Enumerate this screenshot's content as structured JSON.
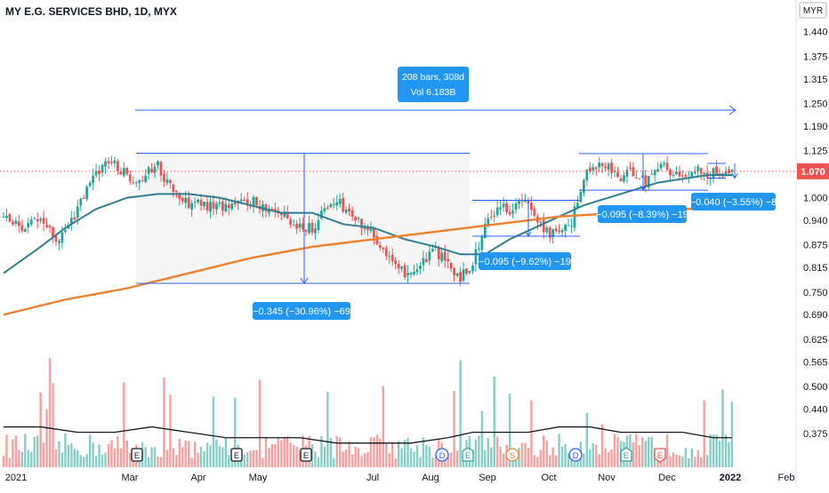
{
  "header": {
    "title": "MY E.G. SERVICES BHD, 1D, MYX"
  },
  "currency_badge": "MYR",
  "last_price_label": "1.070",
  "colors": {
    "up": "#26a69a",
    "down": "#ef5350",
    "ma_fast": "#2f7f93",
    "ma_slow": "#f0812a",
    "annotation": "#2962ff",
    "label_bg": "#2196f3"
  },
  "chart_data": {
    "type": "candlestick",
    "x_ticks": [
      "2021",
      "Mar",
      "Apr",
      "May",
      "Jul",
      "Aug",
      "Sep",
      "Oct",
      "Nov",
      "Dec",
      "2022",
      "Feb"
    ],
    "y_ticks": [
      "1.440",
      "1.375",
      "1.315",
      "1.250",
      "1.190",
      "1.125",
      "1.070",
      "1.000",
      "0.940",
      "0.875",
      "0.815",
      "0.750",
      "0.690",
      "0.625",
      "0.565",
      "0.500",
      "0.440",
      "0.375"
    ],
    "ylim": [
      0.335,
      1.51
    ],
    "last_price": 1.07,
    "close_path": [
      [
        0,
        0.95
      ],
      [
        6,
        0.92
      ],
      [
        12,
        0.94
      ],
      [
        18,
        0.88
      ],
      [
        24,
        0.97
      ],
      [
        30,
        1.07
      ],
      [
        34,
        1.1
      ],
      [
        40,
        1.06
      ],
      [
        44,
        1.05
      ],
      [
        50,
        1.09
      ],
      [
        53,
        1.04
      ],
      [
        58,
        0.99
      ],
      [
        64,
        0.98
      ],
      [
        72,
        0.98
      ],
      [
        80,
        0.99
      ],
      [
        88,
        0.97
      ],
      [
        94,
        0.93
      ],
      [
        100,
        0.92
      ],
      [
        104,
        0.97
      ],
      [
        108,
        0.99
      ],
      [
        112,
        0.96
      ],
      [
        118,
        0.92
      ],
      [
        124,
        0.86
      ],
      [
        128,
        0.8
      ],
      [
        134,
        0.81
      ],
      [
        140,
        0.86
      ],
      [
        144,
        0.82
      ],
      [
        148,
        0.79
      ],
      [
        152,
        0.83
      ],
      [
        156,
        0.92
      ],
      [
        160,
        0.98
      ],
      [
        164,
        0.97
      ],
      [
        168,
        0.99
      ],
      [
        172,
        0.96
      ],
      [
        176,
        0.91
      ],
      [
        180,
        0.9
      ],
      [
        184,
        0.93
      ],
      [
        188,
        1.06
      ],
      [
        192,
        1.09
      ],
      [
        196,
        1.08
      ],
      [
        200,
        1.05
      ],
      [
        204,
        1.07
      ],
      [
        208,
        1.04
      ],
      [
        212,
        1.09
      ],
      [
        216,
        1.07
      ],
      [
        220,
        1.05
      ],
      [
        224,
        1.08
      ],
      [
        228,
        1.06
      ],
      [
        232,
        1.07
      ],
      [
        236,
        1.07
      ]
    ],
    "series": [
      {
        "name": "",
        "type": "moving_average",
        "color": "#2f7f93",
        "points": [
          [
            0,
            0.8
          ],
          [
            12,
            0.87
          ],
          [
            20,
            0.92
          ],
          [
            30,
            0.97
          ],
          [
            40,
            1.0
          ],
          [
            50,
            1.01
          ],
          [
            60,
            1.01
          ],
          [
            70,
            1.0
          ],
          [
            80,
            0.98
          ],
          [
            90,
            0.96
          ],
          [
            100,
            0.96
          ],
          [
            110,
            0.93
          ],
          [
            120,
            0.92
          ],
          [
            130,
            0.89
          ],
          [
            140,
            0.87
          ],
          [
            148,
            0.85
          ],
          [
            156,
            0.85
          ],
          [
            164,
            0.89
          ],
          [
            172,
            0.92
          ],
          [
            180,
            0.95
          ],
          [
            188,
            0.98
          ],
          [
            196,
            1.0
          ],
          [
            204,
            1.02
          ],
          [
            212,
            1.04
          ],
          [
            220,
            1.05
          ],
          [
            228,
            1.06
          ],
          [
            236,
            1.06
          ]
        ]
      },
      {
        "name": "",
        "type": "moving_average",
        "color": "#f0812a",
        "points": [
          [
            0,
            0.69
          ],
          [
            20,
            0.73
          ],
          [
            40,
            0.76
          ],
          [
            60,
            0.8
          ],
          [
            80,
            0.84
          ],
          [
            100,
            0.87
          ],
          [
            120,
            0.89
          ],
          [
            140,
            0.91
          ],
          [
            160,
            0.93
          ],
          [
            180,
            0.95
          ],
          [
            200,
            0.96
          ],
          [
            220,
            0.97
          ],
          [
            236,
            0.97
          ]
        ]
      }
    ],
    "volume_average": [
      [
        0,
        0.43
      ],
      [
        12,
        0.43
      ],
      [
        24,
        0.42
      ],
      [
        36,
        0.42
      ],
      [
        48,
        0.43
      ],
      [
        60,
        0.42
      ],
      [
        72,
        0.41
      ],
      [
        84,
        0.41
      ],
      [
        96,
        0.41
      ],
      [
        108,
        0.4
      ],
      [
        120,
        0.4
      ],
      [
        132,
        0.4
      ],
      [
        144,
        0.41
      ],
      [
        152,
        0.42
      ],
      [
        160,
        0.42
      ],
      [
        170,
        0.42
      ],
      [
        180,
        0.43
      ],
      [
        190,
        0.43
      ],
      [
        200,
        0.42
      ],
      [
        210,
        0.42
      ],
      [
        220,
        0.42
      ],
      [
        230,
        0.41
      ],
      [
        236,
        0.41
      ]
    ],
    "annotations": [
      {
        "text": "208 bars, 308d",
        "text2": "Vol 6.183B",
        "kind": "range-top"
      },
      {
        "text": "−0.345 (−30.96%) −69",
        "kind": "measure"
      },
      {
        "text": "−0.095 (−9.62%) −19",
        "kind": "measure"
      },
      {
        "text": "−0.095 (−8.39%) −19",
        "kind": "measure"
      },
      {
        "text": "−0.040 (−3.55%) −8",
        "kind": "measure"
      }
    ],
    "event_markers": [
      {
        "letter": "E",
        "style": "earnings"
      },
      {
        "letter": "E",
        "style": "earnings"
      },
      {
        "letter": "E",
        "style": "earnings"
      },
      {
        "letter": "D",
        "style": "dividend"
      },
      {
        "letter": "E",
        "style": "earnings-up"
      },
      {
        "letter": "S",
        "style": "split"
      },
      {
        "letter": "D",
        "style": "dividend"
      },
      {
        "letter": "E",
        "style": "earnings-up"
      },
      {
        "letter": "E",
        "style": "earnings-down"
      }
    ]
  }
}
